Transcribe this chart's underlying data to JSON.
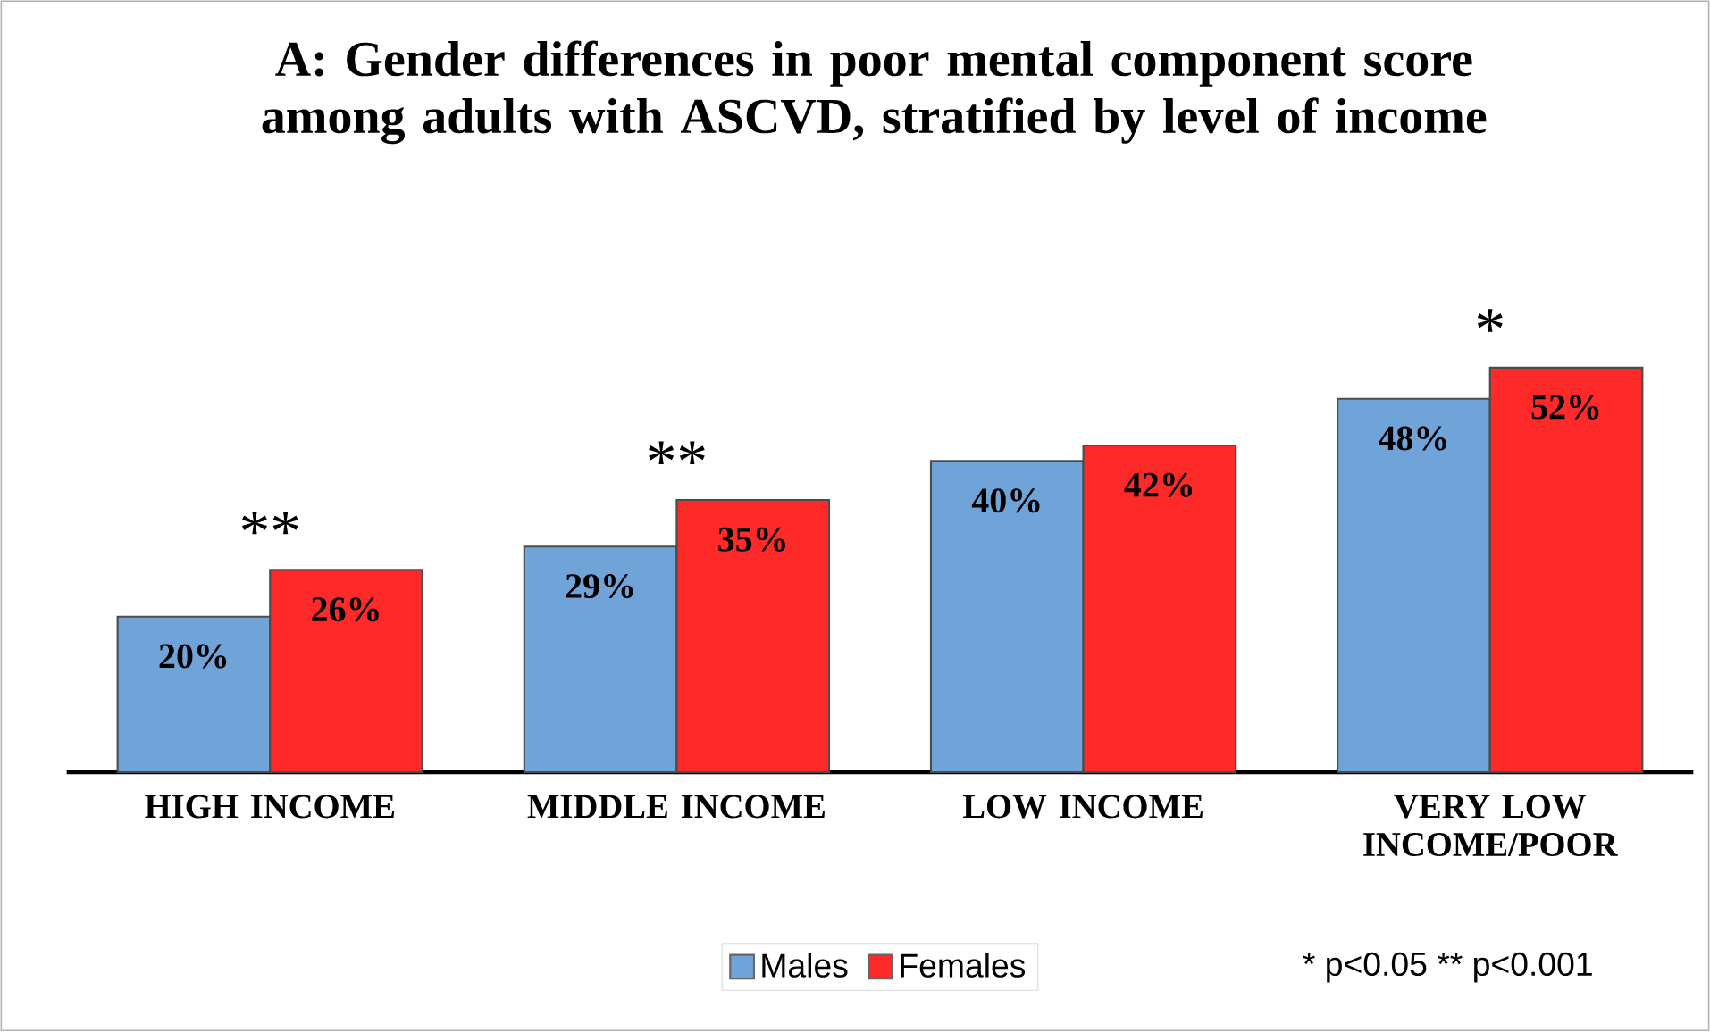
{
  "chart_data": {
    "type": "bar",
    "title": "A: Gender differences in poor mental component score among adults with ASCVD, stratified by level of income",
    "categories": [
      "HIGH INCOME",
      "MIDDLE INCOME",
      "LOW INCOME",
      "VERY LOW INCOME/POOR"
    ],
    "series": [
      {
        "name": "Males",
        "color": "#70a4d8",
        "values": [
          20,
          29,
          40,
          48
        ],
        "value_labels": [
          "20%",
          "29%",
          "40%",
          "48%"
        ]
      },
      {
        "name": "Females",
        "color": "#fe2a2a",
        "values": [
          26,
          35,
          42,
          52
        ],
        "value_labels": [
          "26%",
          "35%",
          "42%",
          "52%"
        ]
      }
    ],
    "annotations": [
      {
        "text": "**",
        "x": "HIGH INCOME",
        "y": 26
      },
      {
        "text": "**",
        "x": "MIDDLE INCOME",
        "y": 35
      },
      {
        "text": "*",
        "x": "VERY LOW INCOME/POOR",
        "y": 52
      },
      "* p<0.05 ** p<0.001"
    ],
    "legend": "bottom"
  }
}
